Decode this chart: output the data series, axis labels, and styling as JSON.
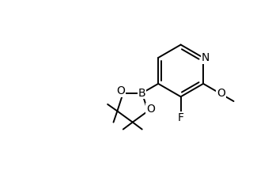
{
  "background": "#ffffff",
  "line_color": "#000000",
  "lw": 1.4,
  "fs": 9,
  "xlim": [
    0,
    10
  ],
  "ylim": [
    0,
    6.5
  ],
  "figsize": [
    3.39,
    2.15
  ],
  "dpi": 100
}
